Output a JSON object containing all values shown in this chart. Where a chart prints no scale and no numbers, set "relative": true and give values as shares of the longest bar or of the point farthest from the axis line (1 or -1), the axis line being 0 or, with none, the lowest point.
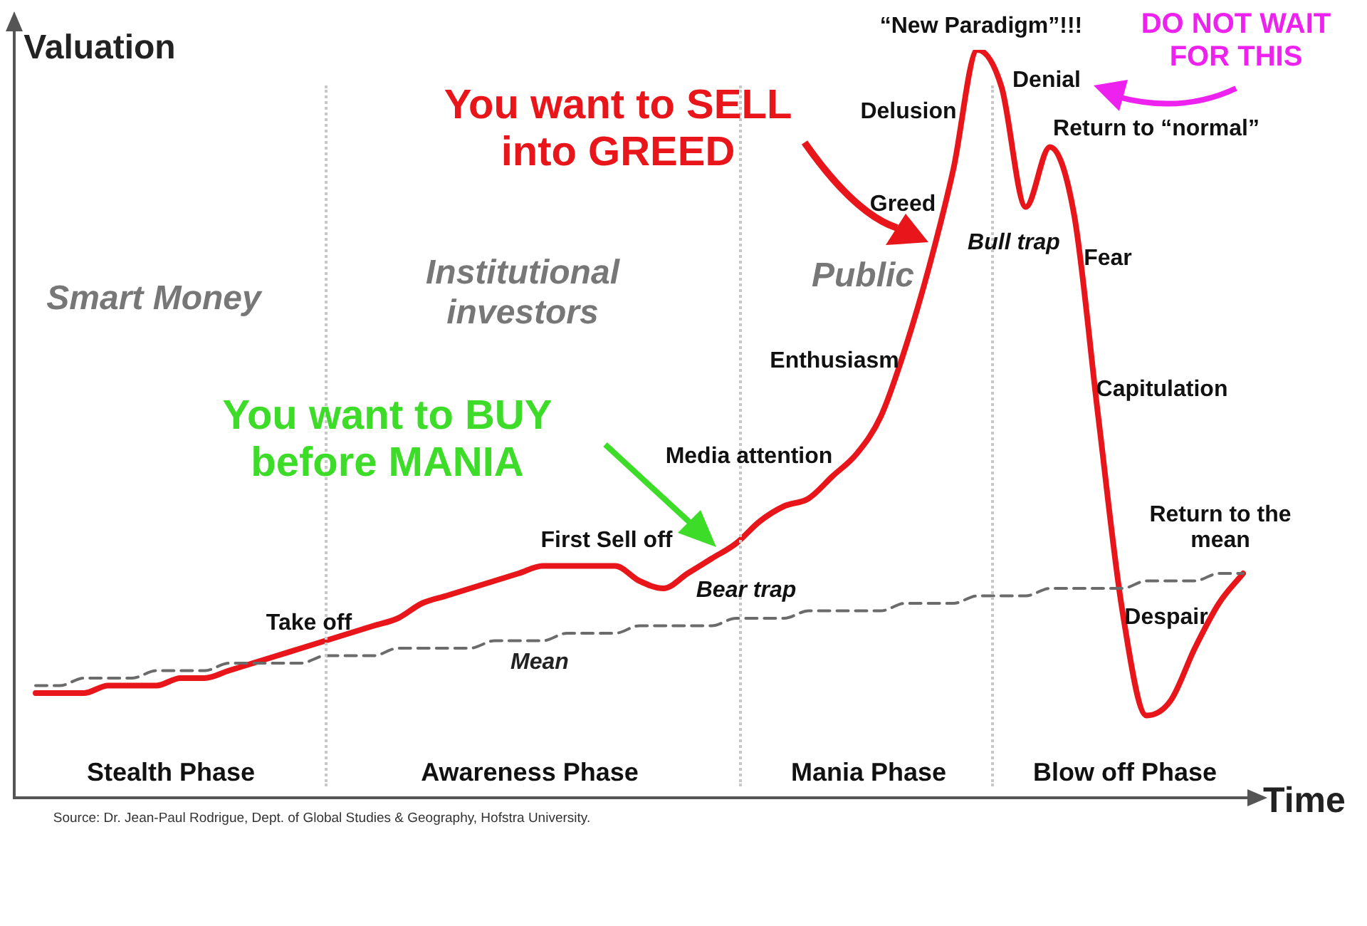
{
  "chart_data": {
    "type": "line",
    "relative": true,
    "xlabel": "Time",
    "ylabel": "Valuation",
    "categories": [
      null,
      null,
      null,
      null,
      null,
      null,
      null,
      null,
      null,
      null,
      null,
      null,
      null,
      null,
      null,
      null,
      null,
      null,
      null,
      null,
      null,
      null,
      null,
      null,
      null,
      null,
      null,
      null,
      null,
      null,
      null,
      null,
      null,
      null,
      null,
      null,
      null,
      null,
      null,
      null,
      null,
      null,
      null,
      null,
      null,
      null,
      null,
      null,
      null,
      null,
      null
    ],
    "series": [
      {
        "color": "#e8161b",
        "line_style": "solid",
        "values": [
          0.14,
          0.14,
          0.14,
          0.15,
          0.15,
          0.15,
          0.16,
          0.16,
          0.17,
          0.18,
          0.19,
          0.2,
          0.21,
          0.22,
          0.23,
          0.24,
          0.26,
          0.27,
          0.28,
          0.29,
          0.3,
          0.31,
          0.31,
          0.31,
          0.31,
          0.29,
          0.28,
          0.3,
          0.32,
          0.34,
          0.37,
          0.39,
          0.4,
          0.43,
          0.46,
          0.51,
          0.6,
          0.71,
          0.84,
          1,
          0.95,
          0.79,
          0.87,
          0.78,
          0.51,
          0.25,
          0.11,
          0.13,
          0.2,
          0.26,
          0.3
        ]
      },
      {
        "name": "Mean",
        "color": "#6b6b6b",
        "line_style": "dashed",
        "values": [
          0.15,
          0.15,
          0.16,
          0.16,
          0.16,
          0.17,
          0.17,
          0.17,
          0.18,
          0.18,
          0.18,
          0.18,
          0.19,
          0.19,
          0.19,
          0.2,
          0.2,
          0.2,
          0.2,
          0.21,
          0.21,
          0.21,
          0.22,
          0.22,
          0.22,
          0.23,
          0.23,
          0.23,
          0.23,
          0.24,
          0.24,
          0.24,
          0.25,
          0.25,
          0.25,
          0.25,
          0.26,
          0.26,
          0.26,
          0.27,
          0.27,
          0.27,
          0.28,
          0.28,
          0.28,
          0.28,
          0.29,
          0.29,
          0.29,
          0.3,
          0.3
        ]
      }
    ],
    "annotations": [
      "You want to SELL into GREED",
      "You want to BUY before MANIA",
      "DO NOT WAIT FOR THIS",
      "Smart Money",
      "Institutional investors",
      "Public",
      "Stealth Phase",
      "Awareness Phase",
      "Mania Phase",
      "Blow off Phase",
      "Take off",
      "First Sell off",
      "Bear trap",
      "Media attention",
      "Enthusiasm",
      "Greed",
      "Delusion",
      "“New Paradigm”!!!",
      "Denial",
      "Bull trap",
      "Return to “normal”",
      "Fear",
      "Capitulation",
      "Despair",
      "Return to the mean",
      "Source: Dr. Jean-Paul Rodrigue, Dept. of Global Studies & Geography, Hofstra University."
    ]
  }
}
